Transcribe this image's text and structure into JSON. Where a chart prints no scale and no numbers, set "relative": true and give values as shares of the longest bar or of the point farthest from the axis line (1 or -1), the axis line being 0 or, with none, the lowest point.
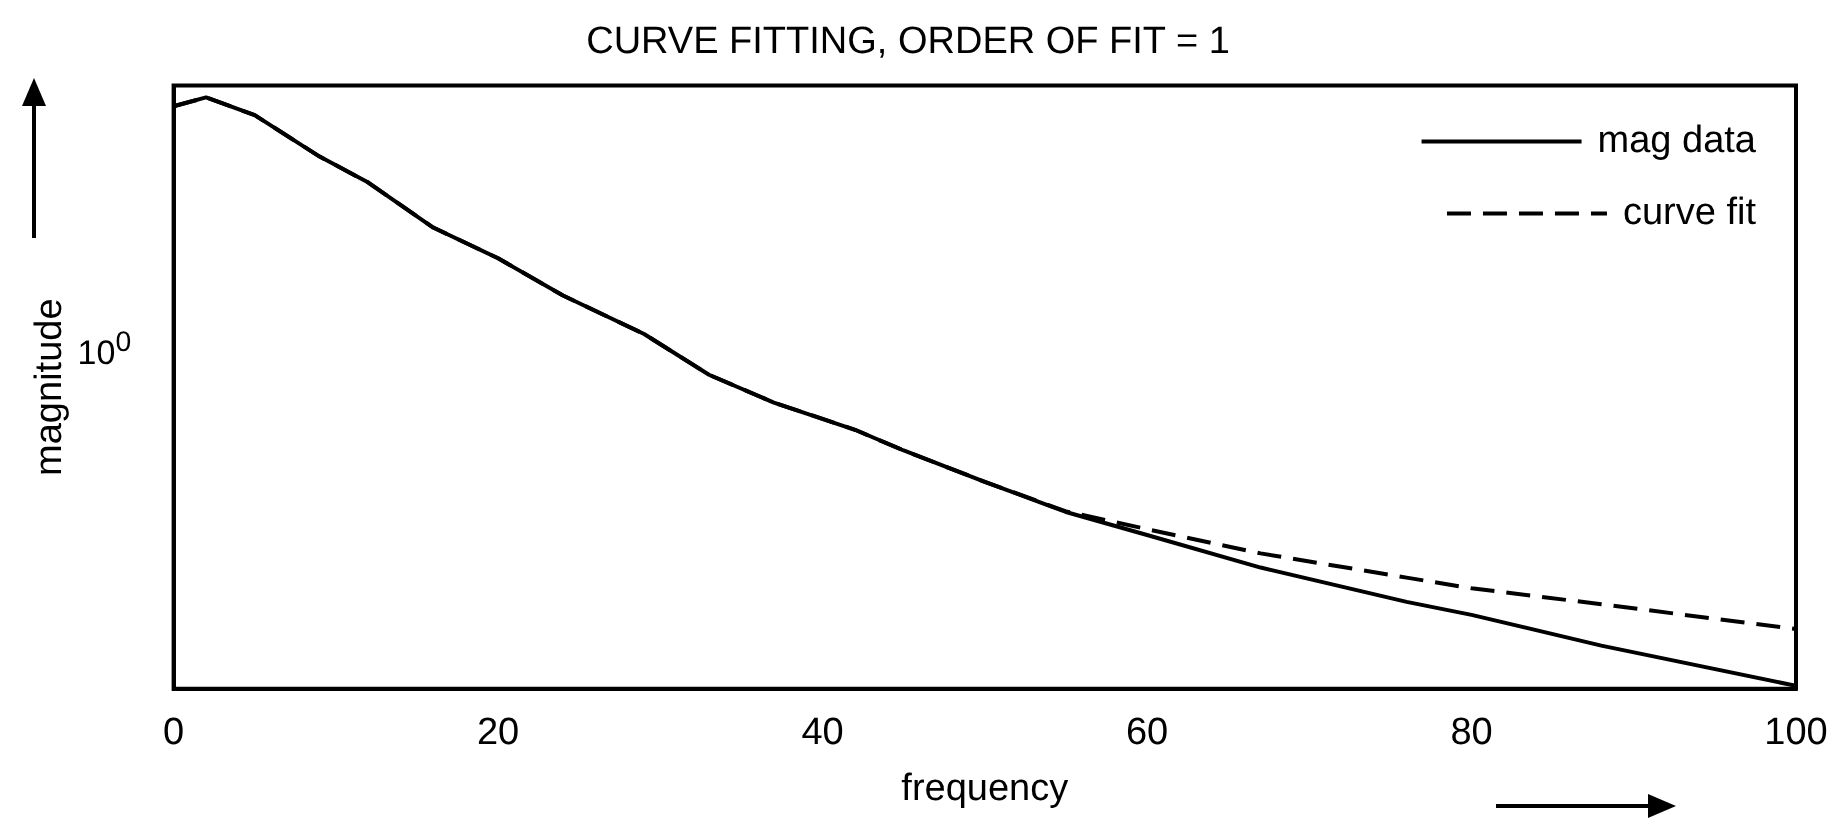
{
  "chart_data": {
    "type": "line",
    "title": "CURVE FITTING, ORDER OF FIT = 1",
    "xlabel": "frequency",
    "ylabel": "magnitude",
    "relative": true,
    "xlim": [
      0,
      100
    ],
    "xticks": [
      0,
      20,
      40,
      60,
      80,
      100
    ],
    "legend": "top right",
    "grid": false,
    "marker": "none",
    "annotations": [
      "10$^{0}$"
    ],
    "x": [
      0,
      2,
      5,
      9,
      12,
      16,
      20,
      24,
      29,
      33,
      37,
      42,
      45,
      50,
      55,
      60,
      67,
      76,
      80,
      88,
      100
    ],
    "series": [
      {
        "name": "mag data",
        "color": "#000000",
        "line_style": "solid",
        "values": [
          0.985,
          1,
          0.97,
          0.9,
          0.856,
          0.78,
          0.728,
          0.665,
          0.6,
          0.531,
          0.484,
          0.438,
          0.403,
          0.35,
          0.299,
          0.26,
          0.205,
          0.147,
          0.125,
          0.073,
          0.005
        ]
      },
      {
        "name": "curve fit",
        "color": "#000000",
        "line_style": "dashed",
        "values": [
          0.985,
          1,
          0.97,
          0.9,
          0.856,
          0.78,
          0.728,
          0.665,
          0.6,
          0.531,
          0.484,
          0.438,
          0.403,
          0.35,
          0.3,
          0.27,
          0.229,
          0.188,
          0.17,
          0.143,
          0.101
        ]
      }
    ]
  }
}
